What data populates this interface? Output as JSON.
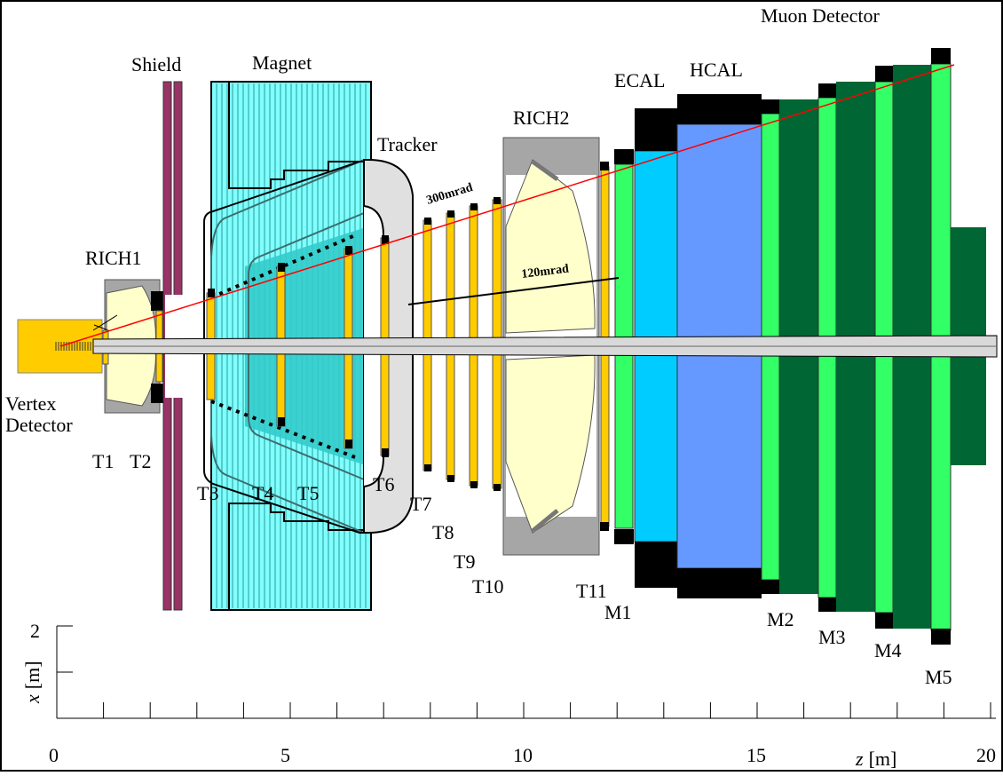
{
  "labels": {
    "muon_detector": "Muon Detector",
    "shield": "Shield",
    "magnet": "Magnet",
    "ecal": "ECAL",
    "hcal": "HCAL",
    "rich2": "RICH2",
    "tracker": "Tracker",
    "rich1": "RICH1",
    "vertex_line1": "Vertex",
    "vertex_line2": "Detector",
    "mrad300": "300mrad",
    "mrad120": "120mrad"
  },
  "stations": {
    "t1": "T1",
    "t2": "T2",
    "t3": "T3",
    "t4": "T4",
    "t5": "T5",
    "t6": "T6",
    "t7": "T7",
    "t8": "T8",
    "t9": "T9",
    "t10": "T10",
    "t11": "T11",
    "m1": "M1",
    "m2": "M2",
    "m3": "M3",
    "m4": "M4",
    "m5": "M5"
  },
  "axes": {
    "x_ticks": [
      "0",
      "5",
      "10",
      "15",
      "20"
    ],
    "x_unit": "[m]",
    "x_var": "z",
    "y_tick": "2",
    "y_unit": "[m]",
    "y_var": "x"
  },
  "colors": {
    "shield": "#993366",
    "magnet": "#80ffff",
    "magnet_inner": "#33cccc",
    "tracker": "#e0e0e0",
    "station": "#ffcc00",
    "rich": "#ffffcc",
    "rich_frame": "#a6a6a6",
    "ecal": "#00ccff",
    "hcal": "#6699ff",
    "muon_light": "#33ff66",
    "muon_dark": "#006633",
    "muon_mid": "#008040",
    "beam": "#d9d9d9",
    "ray": "#ff0000"
  }
}
